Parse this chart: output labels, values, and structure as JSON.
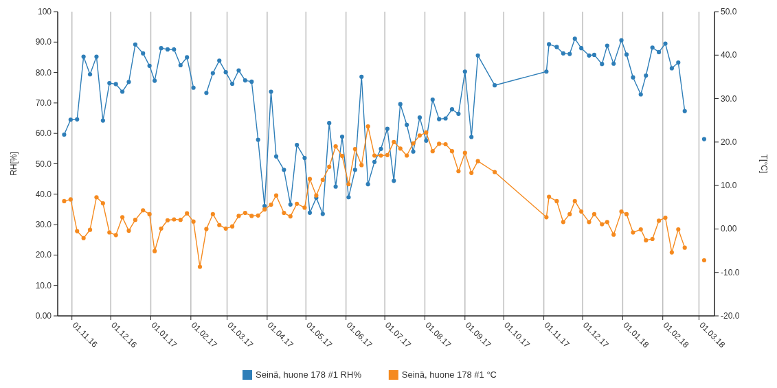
{
  "chart_data": {
    "type": "line",
    "xlabel": null,
    "ylabel": "RH[%]",
    "y2label": "T[°C]",
    "x": [
      "2016-10-26",
      "2016-10-31",
      "2016-11-05",
      "2016-11-10",
      "2016-11-15",
      "2016-11-20",
      "2016-11-25",
      "2016-11-30",
      "2016-12-05",
      "2016-12-10",
      "2016-12-15",
      "2016-12-20",
      "2016-12-26",
      "2016-12-31",
      "2017-01-04",
      "2017-01-09",
      "2017-01-14",
      "2017-01-19",
      "2017-01-24",
      "2017-01-29",
      "2017-02-03",
      "2017-02-08",
      "2017-02-13",
      "2017-02-18",
      "2017-02-23",
      "2017-02-28",
      "2017-03-05",
      "2017-03-10",
      "2017-03-15",
      "2017-03-20",
      "2017-03-25",
      "2017-03-30",
      "2017-04-04",
      "2017-04-08",
      "2017-04-14",
      "2017-04-19",
      "2017-04-24",
      "2017-04-30",
      "2017-05-04",
      "2017-05-09",
      "2017-05-14",
      "2017-05-19",
      "2017-05-24",
      "2017-05-29",
      "2017-06-03",
      "2017-06-08",
      "2017-06-13",
      "2017-06-18",
      "2017-06-23",
      "2017-06-28",
      "2017-07-03",
      "2017-07-08",
      "2017-07-13",
      "2017-07-18",
      "2017-07-23",
      "2017-07-28",
      "2017-08-02",
      "2017-08-07",
      "2017-08-12",
      "2017-08-17",
      "2017-08-22",
      "2017-08-27",
      "2017-09-01",
      "2017-09-06",
      "2017-09-11",
      "2017-09-24",
      "2017-11-03",
      "2017-11-05",
      "2017-11-11",
      "2017-11-16",
      "2017-11-21",
      "2017-11-25",
      "2017-11-30",
      "2017-12-06",
      "2017-12-10",
      "2017-12-16",
      "2017-12-20",
      "2017-12-25",
      "2017-12-31",
      "2018-01-04",
      "2018-01-09",
      "2018-01-15",
      "2018-01-19",
      "2018-01-24",
      "2018-01-29",
      "2018-02-03",
      "2018-02-08",
      "2018-02-13",
      "2018-02-18",
      "2018-02-25",
      "2018-03-05"
    ],
    "series": [
      {
        "name": "Seinä, huone 178 #1 RH%",
        "color": "#2e7eb8",
        "values": [
          59.6,
          64.5,
          64.6,
          85.2,
          79.4,
          85.2,
          64.2,
          76.5,
          76.2,
          73.7,
          76.9,
          89.2,
          86.3,
          82.2,
          77.3,
          88.0,
          87.6,
          87.6,
          82.4,
          85.0,
          75.0,
          null,
          73.3,
          79.8,
          83.9,
          80.1,
          76.3,
          80.7,
          77.4,
          77.0,
          57.9,
          36.1,
          73.7,
          52.4,
          48.0,
          36.6,
          56.2,
          51.9,
          33.9,
          38.8,
          33.5,
          63.4,
          42.5,
          58.9,
          39.0,
          48.0,
          78.6,
          43.3,
          50.6,
          54.9,
          61.5,
          44.4,
          69.6,
          62.8,
          54.0,
          65.2,
          57.6,
          71.1,
          64.7,
          64.9,
          67.9,
          66.4,
          80.3,
          58.8,
          85.6,
          75.8,
          80.3,
          89.3,
          88.4,
          86.3,
          86.1,
          91.1,
          88.0,
          85.6,
          85.8,
          82.8,
          88.8,
          82.9,
          90.6,
          85.9,
          78.4,
          72.8,
          79.0,
          88.2,
          86.7,
          89.5,
          81.4,
          83.3,
          67.3,
          null,
          58.1
        ]
      },
      {
        "name": "Seinä, huone 178 #1 °C",
        "color": "#f58a1f",
        "axis": "y2",
        "values": [
          6.4,
          6.8,
          -0.5,
          -2.1,
          -0.2,
          7.3,
          5.9,
          -0.8,
          -1.4,
          2.7,
          -0.4,
          2.1,
          4.3,
          3.4,
          -5.1,
          0.1,
          2.0,
          2.2,
          2.1,
          3.6,
          1.7,
          -8.7,
          0.0,
          3.4,
          0.9,
          0.1,
          0.6,
          3.0,
          3.7,
          3.0,
          3.1,
          4.5,
          5.6,
          7.7,
          3.7,
          2.9,
          5.8,
          4.9,
          11.5,
          7.7,
          11.3,
          14.3,
          19.0,
          16.8,
          10.3,
          18.4,
          14.7,
          23.6,
          16.9,
          16.9,
          17.0,
          20.0,
          18.5,
          16.9,
          19.7,
          21.5,
          22.2,
          17.9,
          19.6,
          19.5,
          17.9,
          13.3,
          17.5,
          12.9,
          15.6,
          13.1,
          2.7,
          7.4,
          6.4,
          1.6,
          3.4,
          6.4,
          4.0,
          1.6,
          3.4,
          1.1,
          1.6,
          -1.3,
          4.0,
          3.4,
          -0.8,
          -0.1,
          -2.6,
          -2.3,
          1.9,
          2.6,
          -5.4,
          -0.1,
          -4.3,
          null,
          -7.2
        ]
      }
    ],
    "xlim": [
      "2016-10-21",
      "2018-03-13"
    ],
    "xticks": [
      {
        "value": "2016-11-01",
        "label": "01.11.16"
      },
      {
        "value": "2016-12-01",
        "label": "01.12.16"
      },
      {
        "value": "2017-01-01",
        "label": "01.01.17"
      },
      {
        "value": "2017-02-01",
        "label": "01.02.17"
      },
      {
        "value": "2017-03-01",
        "label": "01.03.17"
      },
      {
        "value": "2017-04-01",
        "label": "01.04.17"
      },
      {
        "value": "2017-05-01",
        "label": "01.05.17"
      },
      {
        "value": "2017-06-01",
        "label": "01.06.17"
      },
      {
        "value": "2017-07-01",
        "label": "01.07.17"
      },
      {
        "value": "2017-08-01",
        "label": "01.08.17"
      },
      {
        "value": "2017-09-01",
        "label": "01.09.17"
      },
      {
        "value": "2017-10-01",
        "label": "01.10.17"
      },
      {
        "value": "2017-11-01",
        "label": "01.11.17"
      },
      {
        "value": "2017-12-01",
        "label": "01.12.17"
      },
      {
        "value": "2018-01-01",
        "label": "01.01.18"
      },
      {
        "value": "2018-02-01",
        "label": "01.02.18"
      },
      {
        "value": "2018-03-01",
        "label": "01.03.18"
      }
    ],
    "ylim": [
      0,
      100
    ],
    "yticks": [
      {
        "value": 0,
        "label": "0.00"
      },
      {
        "value": 10,
        "label": "10.0"
      },
      {
        "value": 20,
        "label": "20.0"
      },
      {
        "value": 30,
        "label": "30.0"
      },
      {
        "value": 40,
        "label": "40.0"
      },
      {
        "value": 50,
        "label": "50.0"
      },
      {
        "value": 60,
        "label": "60.0"
      },
      {
        "value": 70,
        "label": "70.0"
      },
      {
        "value": 80,
        "label": "80.0"
      },
      {
        "value": 90,
        "label": "90.0"
      },
      100
    ],
    "y2lim": [
      -20,
      50
    ],
    "y2ticks": [
      {
        "value": -20,
        "label": "-20.0"
      },
      {
        "value": -10,
        "label": "-10.0"
      },
      {
        "value": 0,
        "label": "0.00"
      },
      {
        "value": 10,
        "label": "10.0"
      },
      {
        "value": 20,
        "label": "20.0"
      },
      {
        "value": 30,
        "label": "30.0"
      },
      {
        "value": 40,
        "label": "40.0"
      },
      {
        "value": 50,
        "label": "50.0"
      }
    ],
    "grid": "x",
    "legend": "bottom",
    "marker": "circle",
    "line_style": "solid"
  }
}
